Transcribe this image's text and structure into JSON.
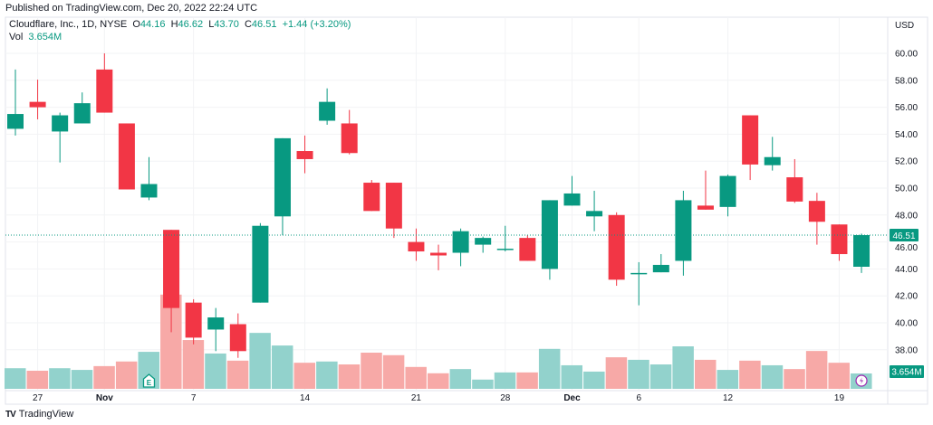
{
  "published": "Published on TradingView.com, Dec 20, 2022 22:24 UTC",
  "legend": {
    "symbol": "Cloudflare, Inc., 1D, NYSE",
    "o_label": "O",
    "o": "44.16",
    "h_label": "H",
    "h": "46.62",
    "l_label": "L",
    "l": "43.70",
    "c_label": "C",
    "c": "46.51",
    "change": "+1.44 (+3.20%)",
    "vol_label": "Vol",
    "vol": "3.654M"
  },
  "footer": {
    "brand": "TradingView"
  },
  "colors": {
    "up": "#089981",
    "down": "#f23645",
    "up_vol": "#92d2cc",
    "down_vol": "#f7a9a7"
  },
  "chart_data": {
    "type": "candlestick",
    "title": "Cloudflare, Inc., 1D, NYSE",
    "currency": "USD",
    "ylim": [
      36,
      61
    ],
    "y_ticks": [
      "38.00",
      "40.00",
      "42.00",
      "44.00",
      "46.00",
      "48.00",
      "50.00",
      "52.00",
      "54.00",
      "56.00",
      "58.00",
      "60.00"
    ],
    "x_ticks": [
      {
        "label": "27",
        "index": 1,
        "bold": false
      },
      {
        "label": "Nov",
        "index": 4,
        "bold": true
      },
      {
        "label": "7",
        "index": 8,
        "bold": false
      },
      {
        "label": "14",
        "index": 13,
        "bold": false
      },
      {
        "label": "21",
        "index": 18,
        "bold": false
      },
      {
        "label": "28",
        "index": 22,
        "bold": false
      },
      {
        "label": "Dec",
        "index": 25,
        "bold": true
      },
      {
        "label": "6",
        "index": 28,
        "bold": false
      },
      {
        "label": "12",
        "index": 32,
        "bold": false
      },
      {
        "label": "19",
        "index": 37,
        "bold": false
      }
    ],
    "last_price": "46.51",
    "last_volume": "3.654M",
    "earnings_marker": {
      "label": "E",
      "index": 6
    },
    "ohlcv": [
      [
        54.4,
        58.8,
        53.9,
        55.5,
        4.9
      ],
      [
        56.4,
        58.05,
        55.1,
        56.0,
        4.3
      ],
      [
        54.2,
        55.6,
        51.9,
        55.4,
        4.9
      ],
      [
        54.8,
        57.1,
        54.8,
        56.3,
        4.5
      ],
      [
        58.8,
        60.0,
        55.6,
        55.6,
        5.4
      ],
      [
        54.8,
        54.8,
        49.9,
        49.9,
        6.5
      ],
      [
        49.3,
        52.3,
        49.1,
        50.3,
        8.8
      ],
      [
        46.9,
        46.9,
        39.3,
        41.1,
        22.4
      ],
      [
        41.5,
        41.75,
        38.4,
        38.9,
        11.6
      ],
      [
        39.5,
        41.1,
        37.9,
        40.4,
        8.4
      ],
      [
        39.9,
        40.7,
        37.4,
        37.9,
        6.7
      ],
      [
        41.5,
        47.4,
        41.5,
        47.2,
        13.3
      ],
      [
        47.9,
        53.7,
        46.5,
        53.7,
        10.3
      ],
      [
        52.75,
        53.9,
        51.1,
        52.15,
        6.2
      ],
      [
        55.0,
        57.4,
        54.7,
        56.4,
        6.5
      ],
      [
        54.8,
        55.8,
        52.5,
        52.6,
        5.8
      ],
      [
        50.4,
        50.6,
        48.3,
        48.3,
        8.6
      ],
      [
        50.4,
        50.4,
        46.3,
        47.0,
        8.0
      ],
      [
        46.0,
        47.0,
        44.6,
        45.3,
        5.2
      ],
      [
        45.2,
        45.8,
        43.9,
        45.0,
        3.7
      ],
      [
        45.2,
        47.0,
        44.2,
        46.8,
        4.7
      ],
      [
        45.8,
        46.4,
        45.2,
        46.3,
        2.2
      ],
      [
        45.4,
        47.2,
        45.3,
        45.5,
        3.9
      ],
      [
        46.3,
        46.5,
        44.6,
        44.6,
        3.9
      ],
      [
        44.0,
        49.1,
        43.2,
        49.1,
        9.5
      ],
      [
        48.7,
        50.9,
        48.7,
        49.6,
        5.6
      ],
      [
        47.9,
        49.8,
        46.8,
        48.3,
        4.1
      ],
      [
        48.0,
        48.2,
        42.75,
        43.2,
        7.5
      ],
      [
        43.6,
        44.5,
        41.3,
        43.7,
        6.9
      ],
      [
        43.75,
        45.1,
        43.75,
        44.3,
        5.8
      ],
      [
        44.6,
        49.8,
        43.5,
        49.1,
        10.1
      ],
      [
        48.7,
        51.3,
        48.4,
        48.4,
        6.9
      ],
      [
        48.6,
        51.0,
        47.9,
        50.9,
        4.5
      ],
      [
        55.4,
        55.4,
        50.6,
        51.75,
        6.7
      ],
      [
        51.7,
        53.8,
        51.3,
        52.3,
        5.6
      ],
      [
        50.8,
        52.15,
        48.9,
        49.0,
        4.7
      ],
      [
        49.05,
        49.65,
        45.8,
        47.5,
        9.0
      ],
      [
        47.3,
        47.3,
        44.6,
        45.1,
        6.2
      ],
      [
        44.16,
        46.62,
        43.7,
        46.51,
        3.654
      ]
    ]
  }
}
